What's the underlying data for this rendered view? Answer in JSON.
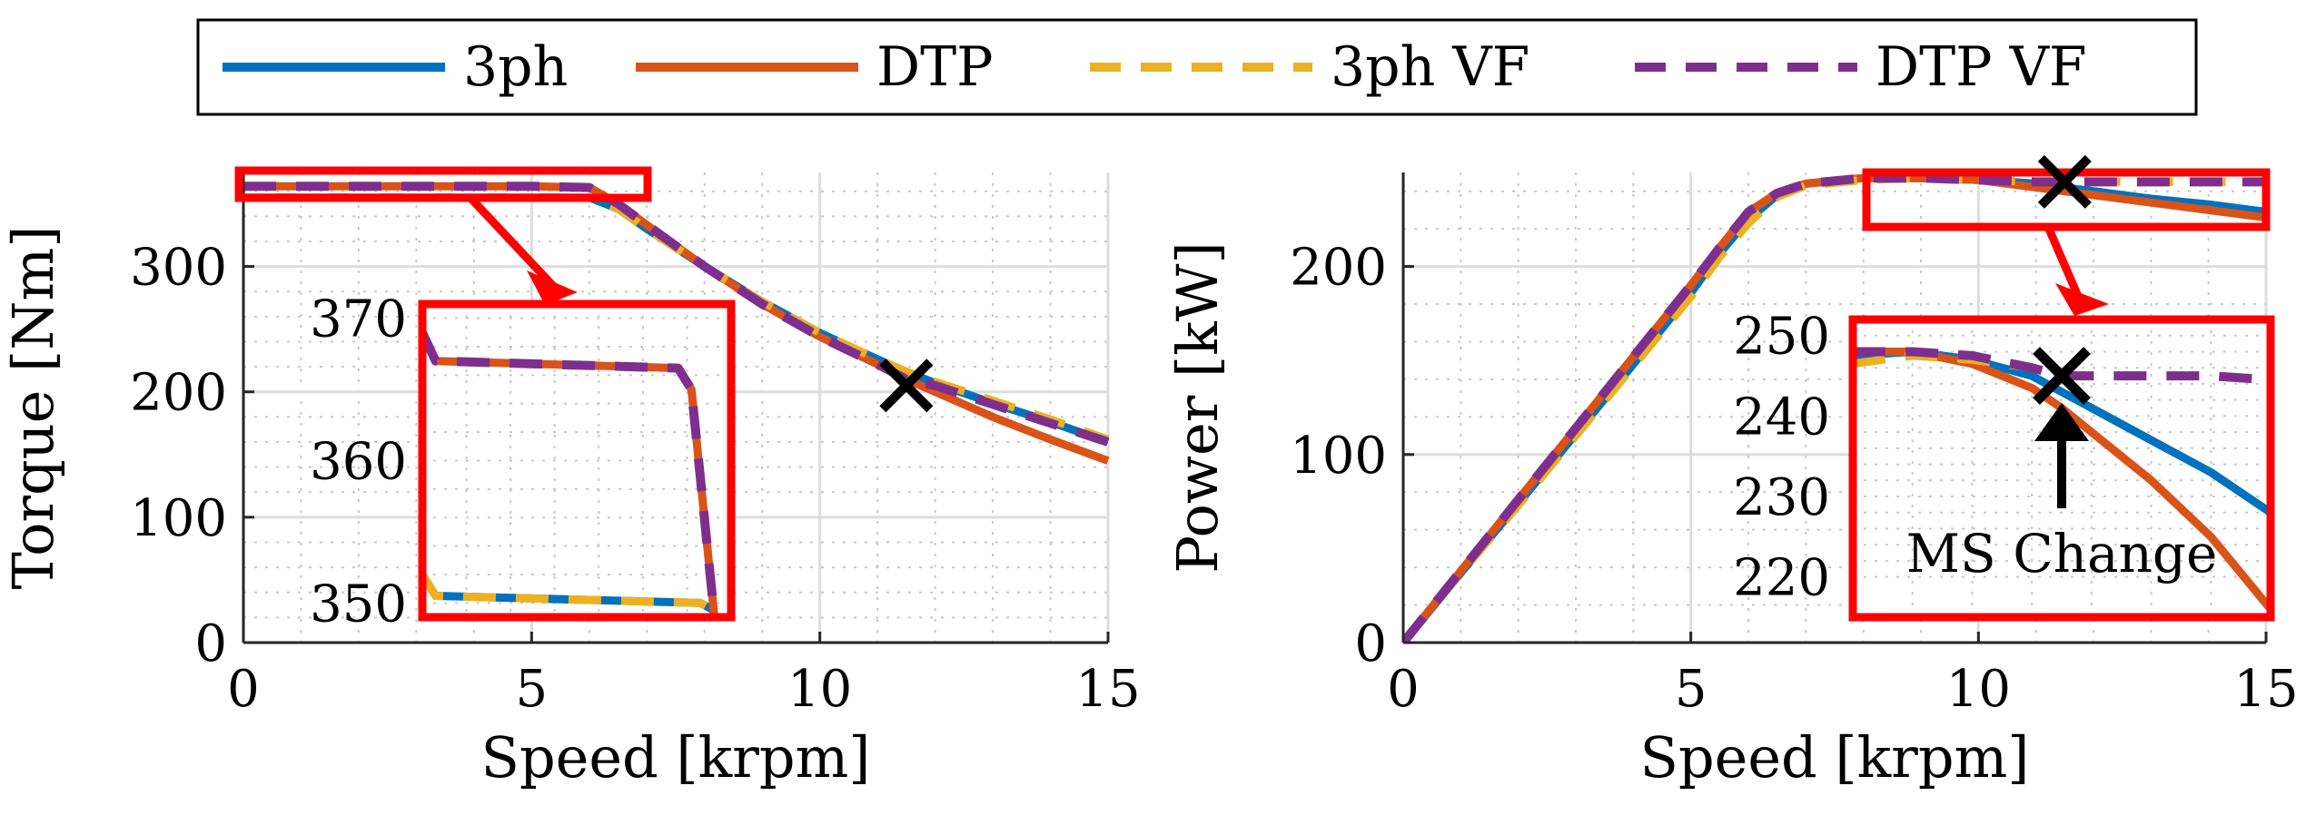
{
  "colors": {
    "s3ph": "#0072BD",
    "dtp": "#D95319",
    "s3phvf": "#EDB120",
    "dtpvf": "#7E2F8E",
    "zoom": "#FF0000",
    "marker": "#000000",
    "grid": "#BFBFBF"
  },
  "legend": {
    "items": [
      {
        "name": "3ph",
        "style": "solid",
        "color": "#0072BD"
      },
      {
        "name": "DTP",
        "style": "solid",
        "color": "#D95319"
      },
      {
        "name": "3ph VF",
        "style": "dashed",
        "color": "#EDB120"
      },
      {
        "name": "DTP VF",
        "style": "dashed",
        "color": "#7E2F8E"
      }
    ]
  },
  "chart_data": [
    {
      "type": "line",
      "id": "torque",
      "xlabel": "Speed [krpm]",
      "ylabel": "Torque [Nm]",
      "xlim": [
        0,
        15
      ],
      "ylim": [
        0,
        375
      ],
      "xticks": [
        0,
        5,
        10,
        15
      ],
      "yticks": [
        0,
        100,
        200,
        300
      ],
      "grid": true,
      "series": [
        {
          "name": "3ph",
          "x": [
            0,
            5,
            6,
            6.5,
            7,
            8,
            9,
            10,
            11,
            11.5,
            12,
            13,
            14,
            15
          ],
          "y": [
            355,
            355,
            355,
            346,
            330,
            300,
            272,
            247,
            226,
            216,
            207,
            191,
            176,
            160
          ]
        },
        {
          "name": "DTP",
          "x": [
            0,
            5,
            6,
            6.5,
            7,
            8,
            9,
            10,
            11,
            11.5,
            12,
            13,
            14,
            15
          ],
          "y": [
            364,
            364,
            363,
            350,
            333,
            300,
            270,
            244,
            222,
            210,
            200,
            180,
            162,
            145
          ]
        },
        {
          "name": "3ph VF",
          "x": [
            0,
            5,
            6,
            6.5,
            7,
            8,
            9,
            10,
            11,
            11.5,
            12,
            13,
            14,
            15
          ],
          "y": [
            355,
            355,
            355,
            346,
            330,
            300,
            272,
            247,
            226,
            216,
            208,
            193,
            178,
            162
          ]
        },
        {
          "name": "DTP VF",
          "x": [
            0,
            5,
            6,
            6.5,
            7,
            8,
            9,
            10,
            11,
            11.5,
            12,
            13,
            14,
            15
          ],
          "y": [
            364,
            364,
            363,
            350,
            333,
            300,
            270,
            244,
            222,
            210,
            205,
            190,
            175,
            160
          ]
        }
      ],
      "marker": {
        "x": 11.5,
        "y": 205,
        "symbol": "x"
      },
      "inset": {
        "xlim": [
          0,
          7
        ],
        "ylim": [
          349,
          371
        ],
        "yticks": [
          350,
          360,
          370
        ],
        "series": [
          {
            "name": "3ph",
            "x": [
              0,
              0.3,
              6.3,
              6.6,
              6.75
            ],
            "y": [
              352,
              350.5,
              350,
              349.5,
              345
            ]
          },
          {
            "name": "DTP",
            "x": [
              0,
              0.3,
              5.8,
              6.1,
              6.75
            ],
            "y": [
              369,
              367,
              366.5,
              365,
              345
            ]
          },
          {
            "name": "3ph VF",
            "x": [
              0,
              0.3,
              6.3,
              6.6,
              6.75
            ],
            "y": [
              352,
              350.5,
              350,
              349.5,
              345
            ]
          },
          {
            "name": "DTP VF",
            "x": [
              0,
              0.3,
              5.8,
              6.1,
              6.75
            ],
            "y": [
              369,
              367,
              366.5,
              365,
              345
            ]
          }
        ]
      }
    },
    {
      "type": "line",
      "id": "power",
      "xlabel": "Speed [krpm]",
      "ylabel": "Power [kW]",
      "xlim": [
        0,
        15
      ],
      "ylim": [
        0,
        250
      ],
      "xticks": [
        0,
        5,
        10,
        15
      ],
      "yticks": [
        0,
        100,
        200
      ],
      "grid": true,
      "series": [
        {
          "name": "3ph",
          "x": [
            0,
            1,
            2,
            3,
            4,
            5,
            5.5,
            6,
            6.5,
            7,
            8,
            9,
            10,
            11,
            11.5,
            12,
            13,
            14,
            15
          ],
          "y": [
            0,
            37,
            74,
            111,
            148,
            186,
            207,
            225,
            238,
            244,
            247,
            247,
            246,
            244,
            242,
            240,
            236,
            233,
            229
          ]
        },
        {
          "name": "DTP",
          "x": [
            0,
            1,
            2,
            3,
            4,
            5,
            5.5,
            6,
            6.5,
            7,
            8,
            9,
            10,
            11,
            11.5,
            12,
            13,
            14,
            15
          ],
          "y": [
            0,
            38,
            76,
            114,
            152,
            190,
            210,
            229,
            239,
            244,
            247,
            247,
            246,
            242,
            240,
            238,
            234,
            230,
            226
          ]
        },
        {
          "name": "3ph VF",
          "x": [
            0,
            1,
            2,
            3,
            4,
            5,
            5.5,
            6,
            6.5,
            7,
            8,
            9,
            10,
            11,
            11.5,
            12,
            13,
            14,
            15
          ],
          "y": [
            0,
            37,
            73,
            110,
            147,
            184,
            205,
            223,
            237,
            243,
            246,
            247,
            246,
            245,
            245,
            245,
            245,
            245,
            245
          ]
        },
        {
          "name": "DTP VF",
          "x": [
            0,
            1,
            2,
            3,
            4,
            5,
            5.5,
            6,
            6.5,
            7,
            8,
            9,
            10,
            11,
            11.5,
            12,
            13,
            14,
            15
          ],
          "y": [
            0,
            38,
            76,
            114,
            152,
            190,
            210,
            229,
            239,
            244,
            247,
            247,
            246,
            245,
            245,
            245,
            245,
            245,
            245
          ]
        }
      ],
      "marker": {
        "x": 11.5,
        "y": 245,
        "symbol": "x"
      },
      "inset": {
        "xlim": [
          8,
          15
        ],
        "ylim": [
          215,
          252
        ],
        "yticks": [
          220,
          230,
          240,
          250
        ],
        "series": [
          {
            "name": "3ph",
            "x": [
              8,
              9,
              10,
              11,
              11.5,
              12,
              13,
              14,
              15
            ],
            "y": [
              247.5,
              248,
              247,
              245,
              243,
              241,
              237,
              233,
              228
            ]
          },
          {
            "name": "DTP",
            "x": [
              8,
              9,
              10,
              11,
              11.5,
              12,
              13,
              14,
              15
            ],
            "y": [
              248,
              248,
              246.5,
              243.5,
              241,
              238,
              232,
              225,
              216
            ]
          },
          {
            "name": "3ph VF",
            "x": [
              8,
              9,
              10,
              11,
              11.5,
              12,
              13,
              14,
              15
            ],
            "y": [
              246.5,
              247.5,
              247,
              246,
              245,
              245,
              245,
              245,
              244.5
            ]
          },
          {
            "name": "DTP VF",
            "x": [
              8,
              9,
              10,
              11,
              11.5,
              12,
              13,
              14,
              15
            ],
            "y": [
              248,
              248,
              247.5,
              246,
              245,
              245,
              245,
              245,
              244.5
            ]
          }
        ],
        "annotation": "MS Change"
      }
    }
  ]
}
